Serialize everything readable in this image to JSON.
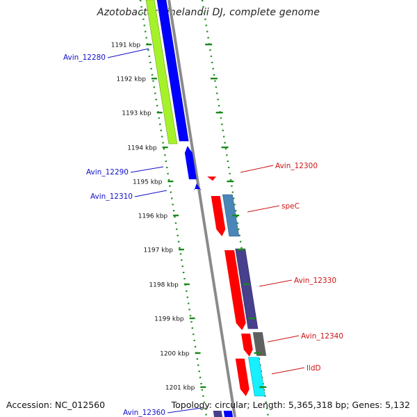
{
  "title": "Azotobacter vinelandii DJ, complete genome",
  "accession_text": "Accession: NC_012560",
  "summary_text": "Topology: circular; Length: 5,365,318 bp; Genes: 5,132",
  "ruler_ticks": [
    "1191 kbp",
    "1192 kbp",
    "1193 kbp",
    "1194 kbp",
    "1195 kbp",
    "1196 kbp",
    "1197 kbp",
    "1198 kbp",
    "1199 kbp",
    "1200 kbp",
    "1201 kbp"
  ],
  "gene_labels": [
    {
      "name": "Avin_12280",
      "color": "#1010c8"
    },
    {
      "name": "Avin_12290",
      "color": "#1010c8"
    },
    {
      "name": "Avin_12310",
      "color": "#1010c8"
    },
    {
      "name": "Avin_12300",
      "color": "#cc1111"
    },
    {
      "name": "speC",
      "color": "#cc1111"
    },
    {
      "name": "Avin_12330",
      "color": "#cc1111"
    },
    {
      "name": "Avin_12340",
      "color": "#cc1111"
    },
    {
      "name": "lldD",
      "color": "#cc1111"
    },
    {
      "name": "Avin_12360",
      "color": "#1010c8"
    }
  ],
  "colors": {
    "forward": "#ff0000",
    "reverse": "#0000ff",
    "lime": "#a6f22a",
    "steel": "#4a86b8",
    "purple": "#47408c",
    "gray": "#606060",
    "cyan": "#16f0ff",
    "backbone": "#8a8a8a",
    "dots": "#1a8a1a"
  }
}
